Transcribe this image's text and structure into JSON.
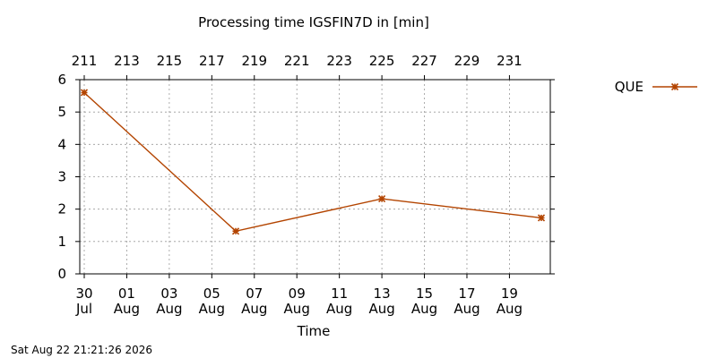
{
  "chart_data": {
    "type": "line",
    "title": "Processing time IGSFIN7D in [min]",
    "xlabel": "Time",
    "ylabel": "",
    "footer": "Sat Aug 22 21:21:26 2026",
    "x_unit": "date",
    "x_range": [
      "2026-07-30",
      "2026-08-20T12:00"
    ],
    "ylim": [
      0,
      6
    ],
    "yticks": [
      "0",
      "1",
      "2",
      "3",
      "4",
      "5",
      "6"
    ],
    "xticks_bottom": [
      {
        "day": "30",
        "month": "Jul",
        "date": "2026-07-30"
      },
      {
        "day": "01",
        "month": "Aug",
        "date": "2026-08-01"
      },
      {
        "day": "03",
        "month": "Aug",
        "date": "2026-08-03"
      },
      {
        "day": "05",
        "month": "Aug",
        "date": "2026-08-05"
      },
      {
        "day": "07",
        "month": "Aug",
        "date": "2026-08-07"
      },
      {
        "day": "09",
        "month": "Aug",
        "date": "2026-08-09"
      },
      {
        "day": "11",
        "month": "Aug",
        "date": "2026-08-11"
      },
      {
        "day": "13",
        "month": "Aug",
        "date": "2026-08-13"
      },
      {
        "day": "15",
        "month": "Aug",
        "date": "2026-08-15"
      },
      {
        "day": "17",
        "month": "Aug",
        "date": "2026-08-17"
      },
      {
        "day": "19",
        "month": "Aug",
        "date": "2026-08-19"
      }
    ],
    "xticks_top": [
      {
        "label": "211",
        "date": "2026-07-30"
      },
      {
        "label": "213",
        "date": "2026-08-01"
      },
      {
        "label": "215",
        "date": "2026-08-03"
      },
      {
        "label": "217",
        "date": "2026-08-05"
      },
      {
        "label": "219",
        "date": "2026-08-07"
      },
      {
        "label": "221",
        "date": "2026-08-09"
      },
      {
        "label": "223",
        "date": "2026-08-11"
      },
      {
        "label": "225",
        "date": "2026-08-13"
      },
      {
        "label": "227",
        "date": "2026-08-15"
      },
      {
        "label": "229",
        "date": "2026-08-17"
      },
      {
        "label": "231",
        "date": "2026-08-19"
      }
    ],
    "grid": true,
    "legend_position": "top-right",
    "series": [
      {
        "name": "QUE",
        "color": "#b34400",
        "marker": "asterisk",
        "points": [
          {
            "x": "2026-07-30",
            "y": 5.6
          },
          {
            "x": "2026-08-06T03:00",
            "y": 1.32
          },
          {
            "x": "2026-08-13T00:00",
            "y": 2.32
          },
          {
            "x": "2026-08-20T12:00",
            "y": 1.73
          }
        ]
      }
    ]
  }
}
